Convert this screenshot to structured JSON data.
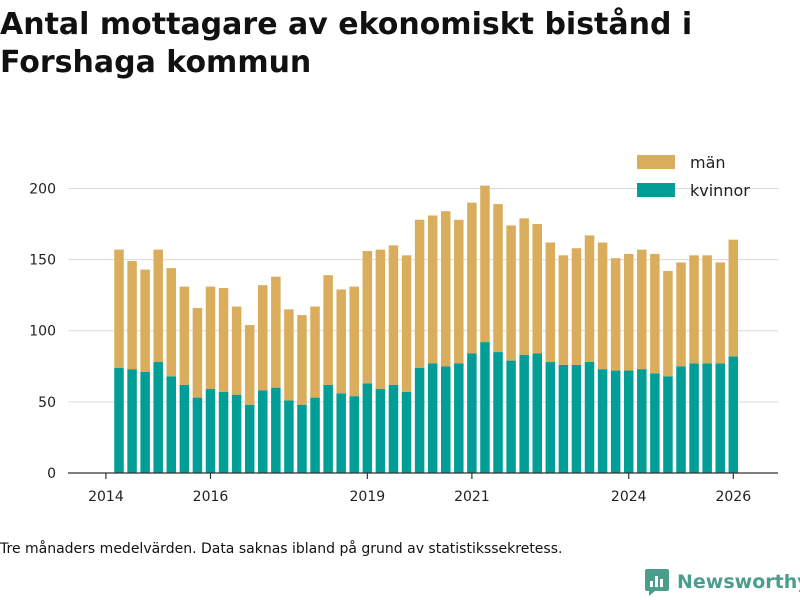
{
  "title": "Antal mottagare av ekonomiskt bistånd i Forshaga kommun",
  "caption": "Tre månaders medelvärden. Data saknas ibland på grund av statistikssekretess.",
  "brand": "Newsworthy",
  "colors": {
    "man": "#D9AD5B",
    "kvinnor": "#009E96",
    "brand": "#4B9E8D"
  },
  "chart_data": {
    "type": "bar",
    "stacked": true,
    "title": "Antal mottagare av ekonomiskt bistånd i Forshaga kommun",
    "xlabel": "",
    "ylabel": "",
    "ylim": [
      0,
      220
    ],
    "yticks": [
      0,
      50,
      100,
      150,
      200
    ],
    "xticks": [
      {
        "label": "2014",
        "index": -1
      },
      {
        "label": "2016",
        "index": 7
      },
      {
        "label": "2019",
        "index": 19
      },
      {
        "label": "2021",
        "index": 27
      },
      {
        "label": "2024",
        "index": 39
      },
      {
        "label": "2026",
        "index": 47
      }
    ],
    "legend_position": "top-right",
    "legend_order": [
      "män",
      "kvinnor"
    ],
    "series": [
      {
        "name": "kvinnor",
        "values": [
          74,
          73,
          71,
          78,
          68,
          62,
          53,
          59,
          57,
          55,
          48,
          58,
          60,
          51,
          48,
          53,
          62,
          56,
          54,
          63,
          59,
          62,
          57,
          74,
          77,
          75,
          77,
          84,
          92,
          85,
          79,
          83,
          84,
          78,
          76,
          76,
          78,
          73,
          72,
          72,
          73,
          70,
          68,
          75,
          77,
          77,
          77,
          82
        ]
      },
      {
        "name": "män",
        "values": [
          83,
          76,
          72,
          79,
          76,
          69,
          63,
          72,
          73,
          62,
          56,
          74,
          78,
          64,
          63,
          64,
          77,
          73,
          77,
          93,
          98,
          98,
          96,
          104,
          104,
          109,
          101,
          106,
          110,
          104,
          95,
          96,
          91,
          84,
          77,
          82,
          89,
          89,
          79,
          82,
          84,
          84,
          74,
          73,
          76,
          76,
          71,
          82
        ]
      }
    ]
  }
}
